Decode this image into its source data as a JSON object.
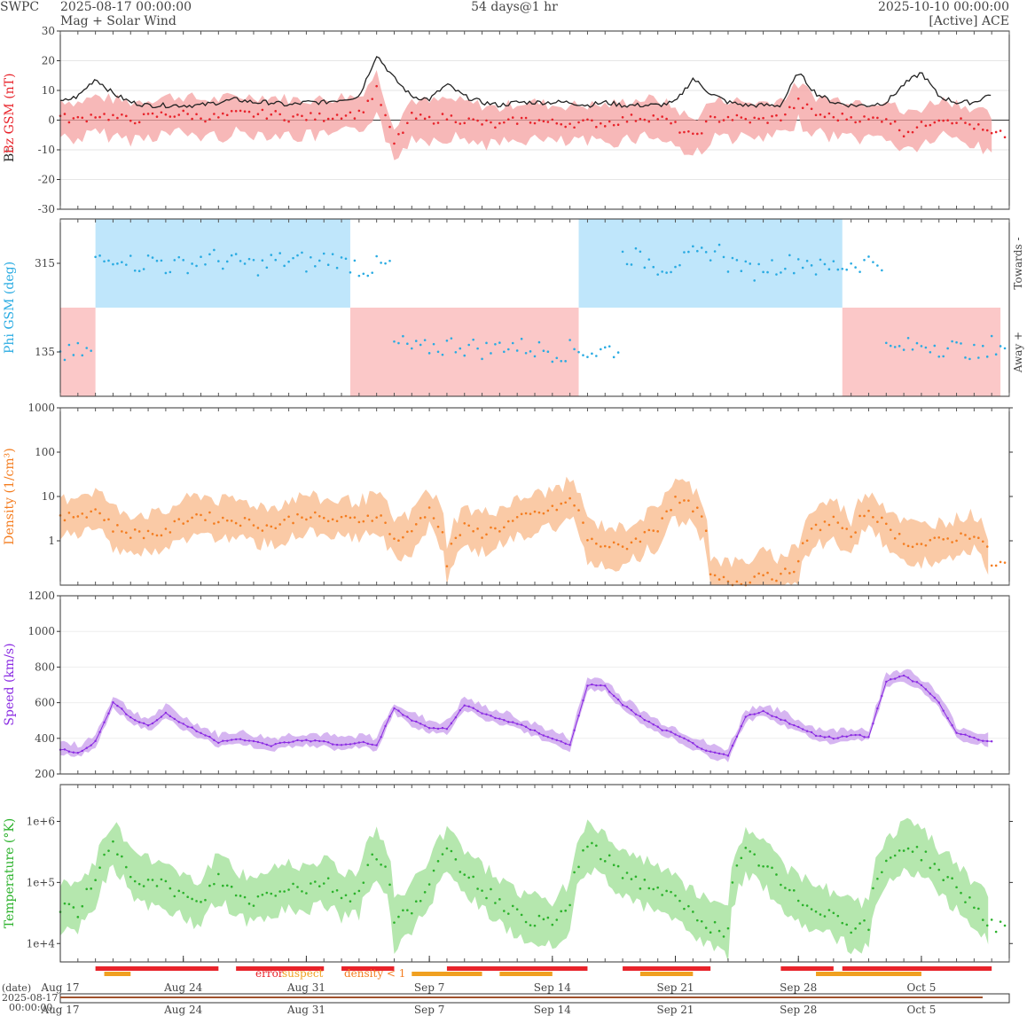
{
  "header": {
    "brand": "SWPC",
    "start": "2025-08-17 00:00:00",
    "subtitle": "Mag + Solar Wind",
    "span": "54 days@1 hr",
    "end": "2025-10-10 00:00:00",
    "source": "[Active] ACE"
  },
  "x_axis": {
    "ticks": [
      "Aug 17",
      "Aug 24",
      "Aug 31",
      "Sep 7",
      "Sep 14",
      "Sep 21",
      "Sep 28",
      "Oct 5"
    ],
    "date_label": "(date)",
    "bottom_start_date": "2025-08-17",
    "bottom_start_time": "00:00:00"
  },
  "flags_legend": {
    "error": "error",
    "suspect": "suspect",
    "density": "density < 1"
  },
  "colors": {
    "bt": "#222222",
    "bz": "#e8232a",
    "bz_fill": "#f4a0a0",
    "phi": "#29abe2",
    "towards_fill": "#bfe6fb",
    "away_fill": "#fbc8c8",
    "density": "#f47d20",
    "density_fill": "#f9c197",
    "speed": "#8a2be2",
    "speed_fill": "#cfa8ee",
    "temperature": "#2bb22b",
    "temperature_fill": "#a8e3a0",
    "error": "#e8232a",
    "suspect": "#f0a020"
  },
  "chart_data": [
    {
      "type": "line",
      "ylabel_bt": "Bt",
      "ylabel_bz": "Bz GSM (nT)",
      "ylim": [
        -30,
        30
      ],
      "yticks": [
        "30",
        "20",
        "10",
        "0",
        "-10",
        "-20",
        "-30"
      ],
      "x_days": [
        0,
        1,
        2,
        3,
        4,
        5,
        6,
        7,
        8,
        9,
        10,
        11,
        12,
        13,
        14,
        15,
        16,
        17,
        18,
        19,
        20,
        21,
        22,
        23,
        24,
        25,
        26,
        27,
        28,
        29,
        30,
        31,
        32,
        33,
        34,
        35,
        36,
        37,
        38,
        39,
        40,
        41,
        42,
        43,
        44,
        45,
        46,
        47,
        48,
        49,
        50,
        51,
        52,
        53
      ],
      "series": [
        {
          "name": "Bt",
          "values": [
            6,
            8,
            14,
            9,
            6,
            5,
            5,
            5,
            5,
            6,
            7,
            6,
            6,
            5,
            6,
            6,
            7,
            8,
            22,
            14,
            8,
            7,
            12,
            8,
            6,
            5,
            6,
            6,
            6,
            6,
            5,
            6,
            5,
            5,
            5,
            6,
            14,
            9,
            6,
            5,
            5,
            5,
            16,
            9,
            6,
            5,
            5,
            6,
            12,
            16,
            8,
            6,
            6,
            9
          ]
        },
        {
          "name": "Bz",
          "values": [
            1,
            0,
            2,
            1,
            0,
            1,
            2,
            2,
            1,
            1,
            2,
            2,
            2,
            1,
            1,
            1,
            2,
            2,
            10,
            -8,
            1,
            0,
            1,
            0,
            -1,
            -2,
            0,
            0,
            -1,
            -1,
            -1,
            -1,
            0,
            1,
            1,
            -2,
            -6,
            0,
            1,
            0,
            0,
            1,
            6,
            2,
            1,
            1,
            0,
            1,
            -4,
            -2,
            1,
            0,
            -2,
            -5
          ]
        }
      ]
    },
    {
      "type": "scatter",
      "ylabel": "Phi GSM (deg)",
      "yticks": [
        "315",
        "135"
      ],
      "right_labels": [
        "Towards -",
        "Away +"
      ],
      "x_days": [
        0,
        1,
        2,
        3,
        4,
        5,
        6,
        7,
        8,
        9,
        10,
        11,
        12,
        13,
        14,
        15,
        16,
        17,
        18,
        19,
        20,
        21,
        22,
        23,
        24,
        25,
        26,
        27,
        28,
        29,
        30,
        31,
        32,
        33,
        34,
        35,
        36,
        37,
        38,
        39,
        40,
        41,
        42,
        43,
        44,
        45,
        46,
        47,
        48,
        49,
        50,
        51,
        52,
        53
      ],
      "values": [
        130,
        135,
        320,
        330,
        315,
        320,
        310,
        315,
        325,
        320,
        315,
        310,
        320,
        320,
        315,
        325,
        315,
        305,
        310,
        150,
        140,
        145,
        150,
        145,
        140,
        150,
        145,
        140,
        135,
        140,
        135,
        140,
        330,
        320,
        310,
        320,
        330,
        340,
        315,
        300,
        310,
        315,
        320,
        305,
        310,
        315,
        320,
        140,
        145,
        150,
        145,
        140,
        130,
        150
      ],
      "sectors": [
        {
          "from": 0,
          "to": 2,
          "side": "away"
        },
        {
          "from": 2,
          "to": 16.5,
          "side": "towards"
        },
        {
          "from": 16.5,
          "to": 29.5,
          "side": "away"
        },
        {
          "from": 29.5,
          "to": 44.5,
          "side": "towards"
        },
        {
          "from": 44.5,
          "to": 53.5,
          "side": "away"
        }
      ]
    },
    {
      "type": "area",
      "ylabel": "Density (1/cm³)",
      "scale": "log",
      "ylim": [
        0.1,
        1000
      ],
      "yticks": [
        "1000",
        "100",
        "10",
        "1"
      ],
      "x_days": [
        0,
        1,
        2,
        3,
        4,
        5,
        6,
        7,
        8,
        9,
        10,
        11,
        12,
        13,
        14,
        15,
        16,
        17,
        18,
        19,
        20,
        21,
        22,
        23,
        24,
        25,
        26,
        27,
        28,
        29,
        30,
        31,
        32,
        33,
        34,
        35,
        36,
        37,
        38,
        39,
        40,
        41,
        42,
        43,
        44,
        45,
        46,
        47,
        48,
        49,
        50,
        51,
        52,
        53
      ],
      "values": [
        3,
        4,
        5,
        2,
        1.5,
        1.5,
        1.5,
        3,
        4,
        3,
        3,
        2.5,
        2,
        3,
        4,
        3,
        3,
        3,
        4,
        1,
        1.5,
        5,
        0.3,
        2,
        1.5,
        2,
        3,
        4,
        5,
        8,
        1,
        0.8,
        0.7,
        1.2,
        2,
        8,
        6,
        0.15,
        0.12,
        0.12,
        0.2,
        0.15,
        0.3,
        2,
        3,
        1,
        5,
        2,
        1,
        0.8,
        1,
        1.2,
        1.5,
        0.3
      ]
    },
    {
      "type": "area",
      "ylabel": "Speed (km/s)",
      "ylim": [
        200,
        1200
      ],
      "yticks": [
        "1200",
        "1000",
        "800",
        "600",
        "400",
        "200"
      ],
      "x_days": [
        0,
        1,
        2,
        3,
        4,
        5,
        6,
        7,
        8,
        9,
        10,
        11,
        12,
        13,
        14,
        15,
        16,
        17,
        18,
        19,
        20,
        21,
        22,
        23,
        24,
        25,
        26,
        27,
        28,
        29,
        30,
        31,
        32,
        33,
        34,
        35,
        36,
        37,
        38,
        39,
        40,
        41,
        42,
        43,
        44,
        45,
        46,
        47,
        48,
        49,
        50,
        51,
        52,
        53
      ],
      "values": [
        340,
        320,
        380,
        600,
        520,
        470,
        540,
        480,
        430,
        380,
        400,
        380,
        360,
        380,
        390,
        380,
        360,
        380,
        360,
        570,
        500,
        460,
        450,
        590,
        540,
        510,
        480,
        440,
        400,
        360,
        700,
        690,
        590,
        520,
        460,
        420,
        370,
        320,
        300,
        520,
        550,
        510,
        460,
        420,
        400,
        420,
        410,
        720,
        750,
        700,
        600,
        430,
        400,
        380
      ]
    },
    {
      "type": "area",
      "ylabel": "Temperature (°K)",
      "scale": "log",
      "ylim": [
        5000,
        4000000
      ],
      "yticks": [
        "1e+6",
        "1e+5",
        "1e+4"
      ],
      "x_days": [
        0,
        1,
        2,
        3,
        4,
        5,
        6,
        7,
        8,
        9,
        10,
        11,
        12,
        13,
        14,
        15,
        16,
        17,
        18,
        19,
        20,
        21,
        22,
        23,
        24,
        25,
        26,
        27,
        28,
        29,
        30,
        31,
        32,
        33,
        34,
        35,
        36,
        37,
        38,
        39,
        40,
        41,
        42,
        43,
        44,
        45,
        46,
        47,
        48,
        49,
        50,
        51,
        52,
        53
      ],
      "values": [
        40000,
        35000,
        90000,
        400000,
        150000,
        100000,
        90000,
        60000,
        40000,
        120000,
        60000,
        50000,
        70000,
        90000,
        80000,
        110000,
        60000,
        70000,
        300000,
        20000,
        40000,
        90000,
        300000,
        150000,
        80000,
        50000,
        30000,
        25000,
        20000,
        40000,
        400000,
        250000,
        150000,
        100000,
        80000,
        50000,
        30000,
        20000,
        15000,
        300000,
        200000,
        90000,
        50000,
        40000,
        30000,
        20000,
        20000,
        200000,
        400000,
        300000,
        150000,
        80000,
        40000,
        20000
      ]
    }
  ]
}
